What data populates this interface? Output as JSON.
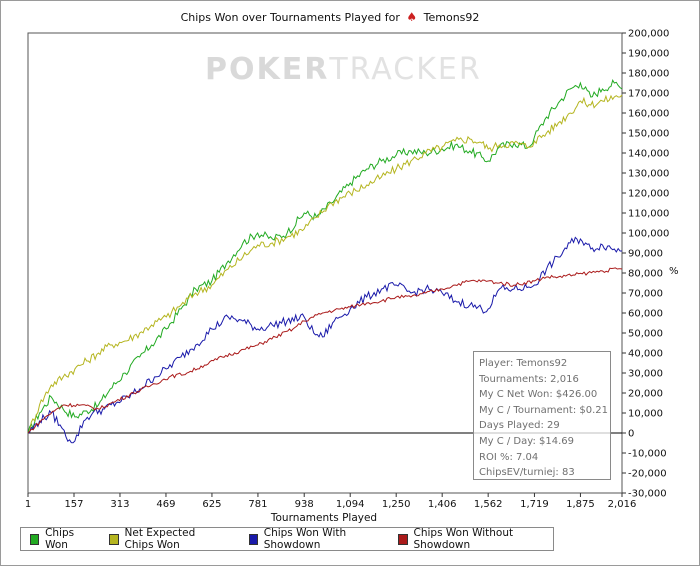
{
  "chart_data": {
    "type": "line",
    "title_prefix": "Chips Won over Tournaments Played for",
    "title_player": "Temons92",
    "watermark_a": "POKER",
    "watermark_b": "TRACKER",
    "xlabel": "Tournaments Played",
    "ylabel_unit": "%",
    "xlim": [
      1,
      2016
    ],
    "ylim": [
      -30000,
      200000
    ],
    "x_ticks": [
      "1",
      "157",
      "313",
      "469",
      "625",
      "781",
      "938",
      "1,094",
      "1,250",
      "1,406",
      "1,562",
      "1,719",
      "1,875",
      "2,016"
    ],
    "x_tick_values": [
      1,
      157,
      313,
      469,
      625,
      781,
      938,
      1094,
      1250,
      1406,
      1562,
      1719,
      1875,
      2016
    ],
    "y_ticks": [
      "200,000",
      "190,000",
      "180,000",
      "170,000",
      "160,000",
      "150,000",
      "140,000",
      "130,000",
      "120,000",
      "110,000",
      "100,000",
      "90,000",
      "80,000",
      "70,000",
      "60,000",
      "50,000",
      "40,000",
      "30,000",
      "20,000",
      "10,000",
      "0",
      "-10,000",
      "-20,000",
      "-30,000"
    ],
    "y_tick_values": [
      200000,
      190000,
      180000,
      170000,
      160000,
      150000,
      140000,
      130000,
      120000,
      110000,
      100000,
      90000,
      80000,
      70000,
      60000,
      50000,
      40000,
      30000,
      20000,
      10000,
      0,
      -10000,
      -20000,
      -30000
    ],
    "series": [
      {
        "name": "Chips Won",
        "color": "#22aa22",
        "x": [
          1,
          40,
          80,
          120,
          160,
          200,
          240,
          280,
          330,
          380,
          420,
          470,
          520,
          570,
          625,
          680,
          730,
          780,
          830,
          880,
          938,
          980,
          1030,
          1094,
          1150,
          1200,
          1250,
          1300,
          1350,
          1406,
          1450,
          1500,
          1540,
          1562,
          1600,
          1650,
          1700,
          1719,
          1760,
          1800,
          1840,
          1875,
          1910,
          1950,
          1990,
          2016
        ],
        "y": [
          0,
          10000,
          18000,
          12000,
          8000,
          11000,
          14000,
          22000,
          30000,
          38000,
          44000,
          52000,
          62000,
          72000,
          76000,
          86000,
          95000,
          100000,
          97000,
          100000,
          110000,
          108000,
          115000,
          125000,
          132000,
          136000,
          139000,
          141000,
          140000,
          142000,
          144000,
          141000,
          138000,
          136000,
          143000,
          145000,
          143000,
          148000,
          158000,
          165000,
          172000,
          175000,
          168000,
          172000,
          175000,
          172000
        ]
      },
      {
        "name": "Net Expected Chips Won",
        "color": "#b5b520",
        "x": [
          1,
          40,
          80,
          120,
          160,
          200,
          240,
          280,
          330,
          380,
          420,
          470,
          520,
          570,
          625,
          680,
          730,
          780,
          830,
          880,
          938,
          980,
          1030,
          1094,
          1150,
          1200,
          1250,
          1300,
          1350,
          1406,
          1450,
          1500,
          1540,
          1562,
          1600,
          1650,
          1700,
          1719,
          1760,
          1800,
          1840,
          1875,
          1910,
          1950,
          1990,
          2016
        ],
        "y": [
          0,
          14000,
          24000,
          28000,
          32000,
          36000,
          40000,
          44000,
          46000,
          50000,
          54000,
          58000,
          64000,
          70000,
          74000,
          82000,
          88000,
          94000,
          95000,
          98000,
          102000,
          108000,
          115000,
          120000,
          124000,
          128000,
          132000,
          136000,
          140000,
          143000,
          146000,
          147000,
          145000,
          142000,
          144000,
          145000,
          143000,
          146000,
          150000,
          155000,
          160000,
          166000,
          164000,
          166000,
          168000,
          169000
        ]
      },
      {
        "name": "Chips Won With Showdown",
        "color": "#1a1aaa",
        "x": [
          1,
          40,
          80,
          110,
          130,
          160,
          190,
          220,
          260,
          300,
          340,
          380,
          430,
          470,
          520,
          570,
          625,
          680,
          730,
          781,
          830,
          880,
          938,
          970,
          1000,
          1040,
          1094,
          1150,
          1200,
          1250,
          1300,
          1350,
          1406,
          1450,
          1500,
          1540,
          1562,
          1600,
          1650,
          1700,
          1719,
          1760,
          1800,
          1840,
          1875,
          1910,
          1950,
          1990,
          2016
        ],
        "y": [
          0,
          6000,
          10000,
          4000,
          -2000,
          -4000,
          6000,
          10000,
          12000,
          15000,
          18000,
          22000,
          28000,
          32000,
          38000,
          44000,
          52000,
          58000,
          56000,
          52000,
          54000,
          56000,
          58000,
          50000,
          48000,
          56000,
          62000,
          68000,
          72000,
          74000,
          70000,
          72000,
          70000,
          66000,
          64000,
          62000,
          62000,
          72000,
          72000,
          73000,
          74000,
          82000,
          88000,
          95000,
          97000,
          92000,
          94000,
          92000,
          91000
        ]
      },
      {
        "name": "Chips Won Without Showdown",
        "color": "#aa1a1a",
        "x": [
          1,
          60,
          120,
          180,
          240,
          300,
          360,
          420,
          480,
          540,
          600,
          660,
          720,
          781,
          840,
          900,
          938,
          1000,
          1060,
          1094,
          1150,
          1200,
          1250,
          1300,
          1350,
          1406,
          1450,
          1500,
          1562,
          1600,
          1650,
          1719,
          1760,
          1800,
          1850,
          1900,
          1950,
          2000,
          2016
        ],
        "y": [
          0,
          8000,
          14000,
          14000,
          12000,
          16000,
          20000,
          24000,
          28000,
          30000,
          34000,
          38000,
          41000,
          44000,
          48000,
          52000,
          56000,
          60000,
          62000,
          63000,
          65000,
          66000,
          68000,
          68000,
          70000,
          72000,
          74000,
          76000,
          76000,
          75000,
          74000,
          76000,
          78000,
          78000,
          79000,
          80000,
          81000,
          82000,
          82000
        ]
      }
    ]
  },
  "stats": [
    "Player: Temons92",
    "Tournaments: 2,016",
    "My C Net Won: $426.00",
    "My C / Tournament: $0.21",
    "Days Played: 29",
    "My C / Day: $14.69",
    "ROI %: 7.04",
    "ChipsEV/turniej: 83"
  ]
}
